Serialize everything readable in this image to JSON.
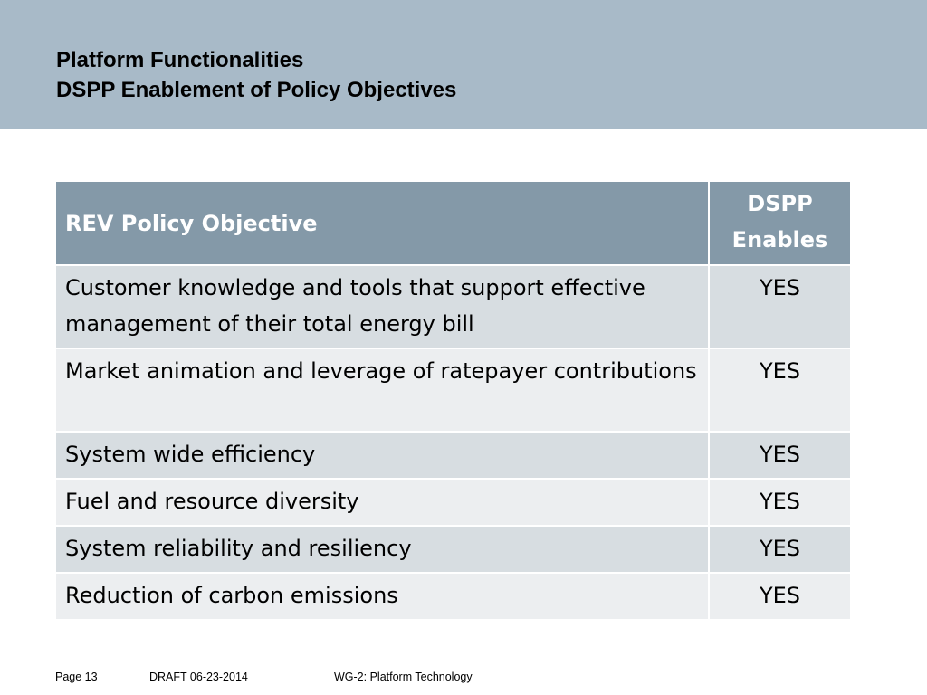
{
  "slide": {
    "title_line1": "Platform Functionalities",
    "title_line2": "DSPP Enablement of Policy Objectives"
  },
  "table": {
    "headers": {
      "objective": "REV Policy Objective",
      "enables_line1": "DSPP",
      "enables_line2": "Enables"
    },
    "rows": [
      {
        "objective": "Customer knowledge and tools that support effective management of their total energy bill",
        "enables": "YES"
      },
      {
        "objective": "Market animation and leverage of ratepayer contributions",
        "enables": "YES"
      },
      {
        "objective": "System wide efficiency",
        "enables": "YES"
      },
      {
        "objective": "Fuel and resource diversity",
        "enables": "YES"
      },
      {
        "objective": "System reliability and resiliency",
        "enables": "YES"
      },
      {
        "objective": "Reduction of carbon emissions",
        "enables": "YES"
      }
    ]
  },
  "footer": {
    "page": "Page 13",
    "draft": "DRAFT 06-23-2014",
    "group": "WG-2: Platform Technology"
  },
  "colors": {
    "header_band": "#a8bac8",
    "table_header": "#8499a8",
    "row_dark": "#d7dde1",
    "row_light": "#eceef0"
  }
}
